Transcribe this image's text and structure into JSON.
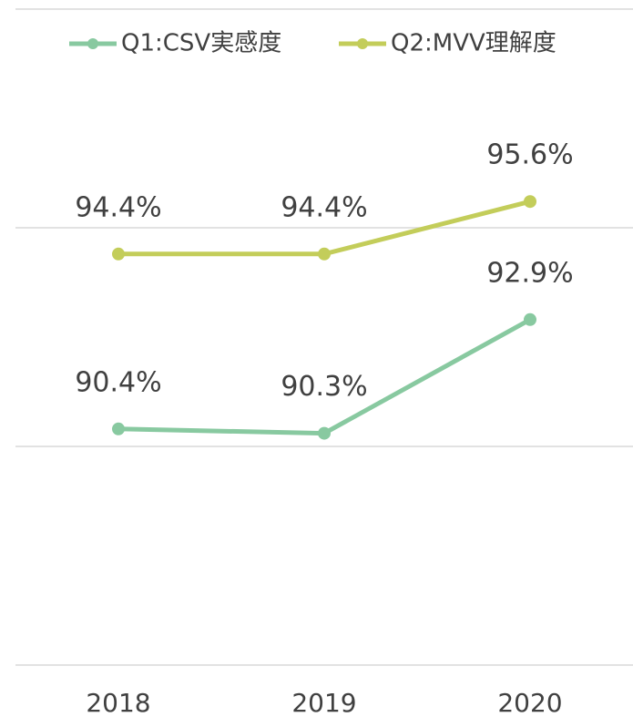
{
  "chart_data": {
    "type": "line",
    "categories": [
      "2018",
      "2019",
      "2020"
    ],
    "series": [
      {
        "name": "Q1:CSV実感度",
        "color": "#88c9a0",
        "values": [
          90.4,
          90.3,
          92.9
        ],
        "value_labels": [
          "90.4%",
          "90.3%",
          "92.9%"
        ]
      },
      {
        "name": "Q2:MVV理解度",
        "color": "#c3cd5a",
        "values": [
          94.4,
          94.4,
          95.6
        ],
        "value_labels": [
          "94.4%",
          "94.4%",
          "95.6%"
        ]
      }
    ],
    "ylim": [
      85,
      100
    ],
    "yticks": [
      85,
      90,
      95,
      100
    ],
    "grid": true,
    "legend": "top"
  }
}
